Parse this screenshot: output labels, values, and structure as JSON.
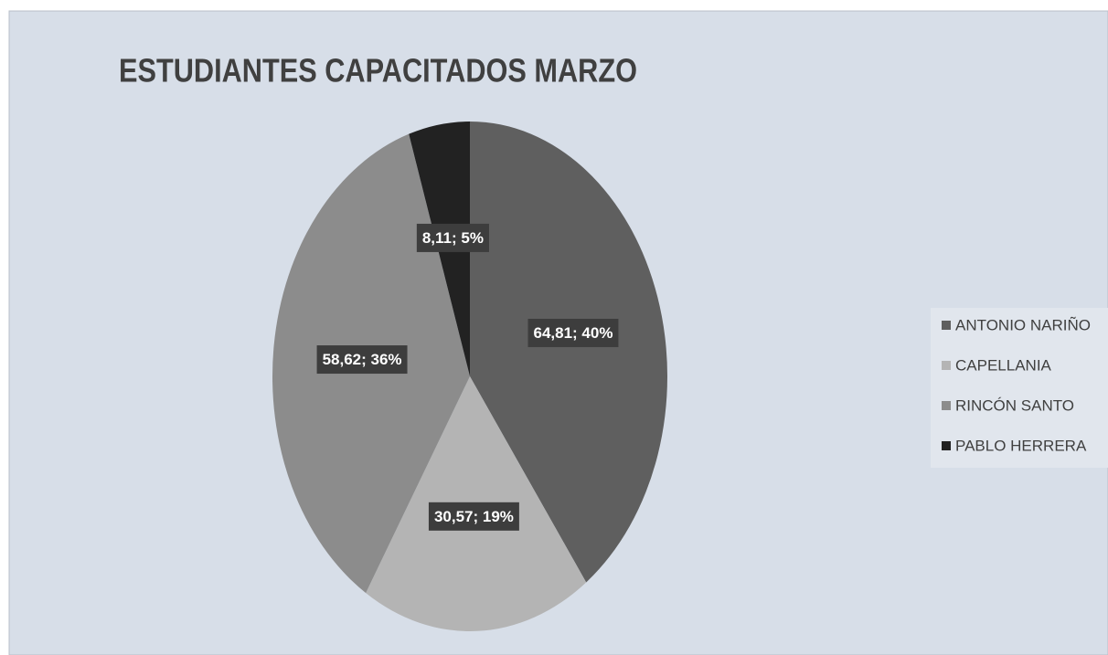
{
  "chart_data": {
    "type": "pie",
    "title": "ESTUDIANTES CAPACITADOS MARZO",
    "categories": [
      "ANTONIO NARIÑO",
      "CAPELLANIA",
      "RINCÓN SANTO",
      "PABLO HERRERA"
    ],
    "values": [
      64.81,
      30.57,
      58.62,
      8.11
    ],
    "value_labels": [
      "64,81; 40%",
      "30,57; 19%",
      "58,62; 36%",
      "8,11; 5%"
    ],
    "colors": [
      "#5f5f5f",
      "#b4b4b4",
      "#8c8c8c",
      "#222222"
    ],
    "legend": "right"
  }
}
